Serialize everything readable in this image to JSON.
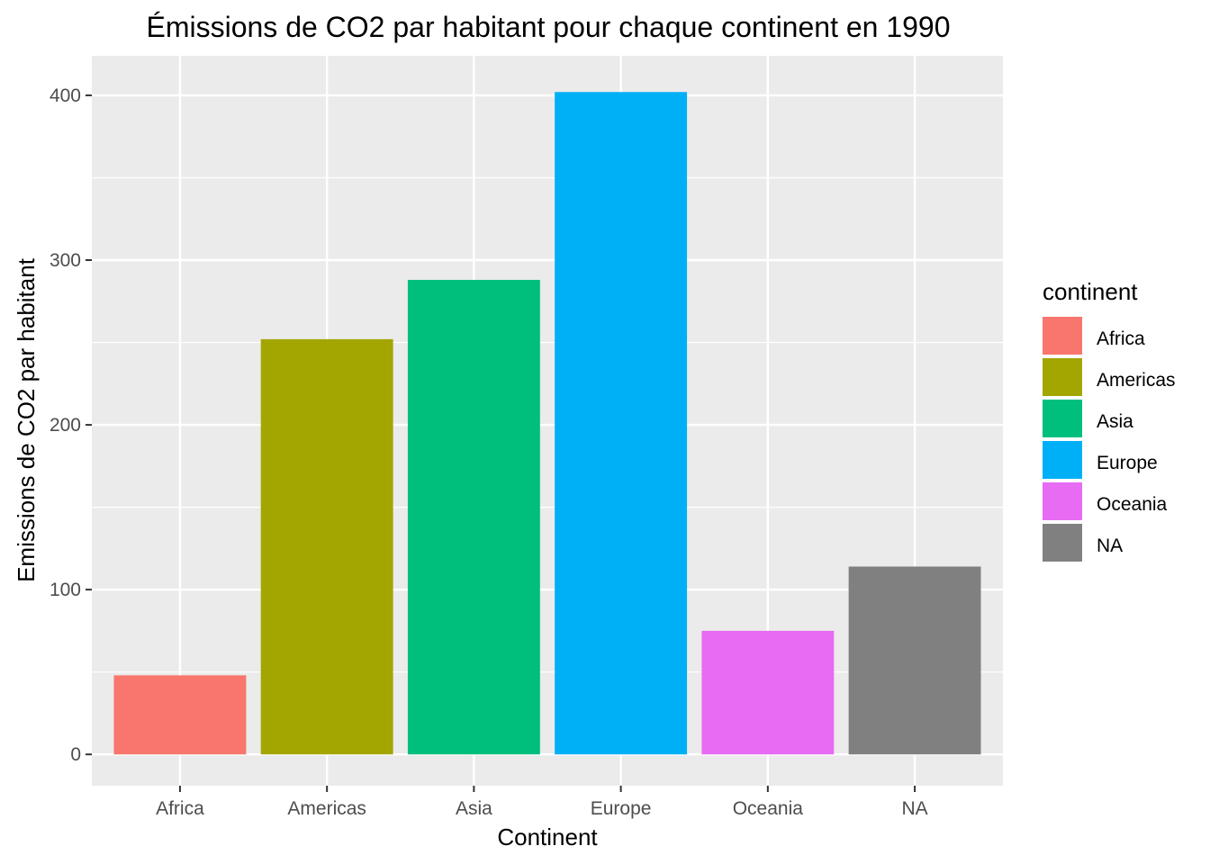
{
  "chart_data": {
    "type": "bar",
    "title": "Émissions de CO2 par habitant pour chaque continent en 1990",
    "xlabel": "Continent",
    "ylabel": "Emissions de CO2 par habitant",
    "categories": [
      "Africa",
      "Americas",
      "Asia",
      "Europe",
      "Oceania",
      "NA"
    ],
    "values": [
      48,
      252,
      288,
      402,
      75,
      114
    ],
    "colors": [
      "#F8766D",
      "#A3A500",
      "#00BF7D",
      "#00B0F6",
      "#E76BF3",
      "#808080"
    ],
    "ylim": [
      -19,
      424
    ],
    "yticks": [
      0,
      100,
      200,
      300,
      400
    ],
    "ytick_labels": [
      "0",
      "100",
      "200",
      "300",
      "400"
    ],
    "grid": true,
    "panel_background": "#EBEBEB",
    "legend": {
      "title": "continent",
      "placement": "right",
      "entries": [
        "Africa",
        "Americas",
        "Asia",
        "Europe",
        "Oceania",
        "NA"
      ]
    }
  }
}
